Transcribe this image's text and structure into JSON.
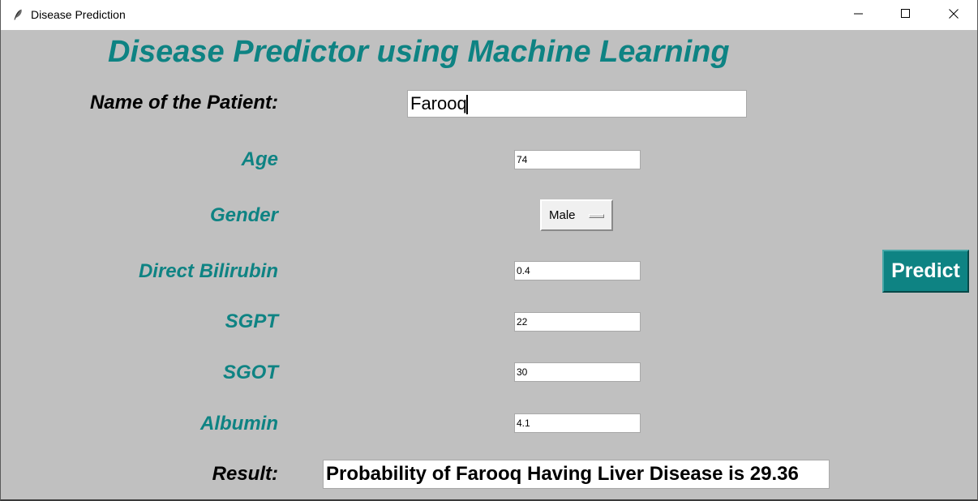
{
  "window": {
    "title": "Disease Prediction",
    "icon": "feather-icon",
    "controls": [
      "minimize-icon",
      "maximize-icon",
      "close-icon"
    ]
  },
  "app": {
    "heading": "Disease Predictor using Machine Learning"
  },
  "form": {
    "name_label": "Name of the Patient:",
    "name_value": "Farooq",
    "age_label": "Age",
    "age_value": "74",
    "gender_label": "Gender",
    "gender_value": "Male",
    "direct_bilirubin_label": "Direct Bilirubin",
    "direct_bilirubin_value": "0.4",
    "sgpt_label": "SGPT",
    "sgpt_value": "22",
    "sgot_label": "SGOT",
    "sgot_value": "30",
    "albumin_label": "Albumin",
    "albumin_value": "4.1",
    "result_label": "Result:",
    "result_value": "Probability of Farooq Having Liver Disease is 29.36"
  },
  "actions": {
    "predict_label": "Predict"
  },
  "colors": {
    "accent": "#0e8383",
    "background": "#c0c0c0"
  }
}
